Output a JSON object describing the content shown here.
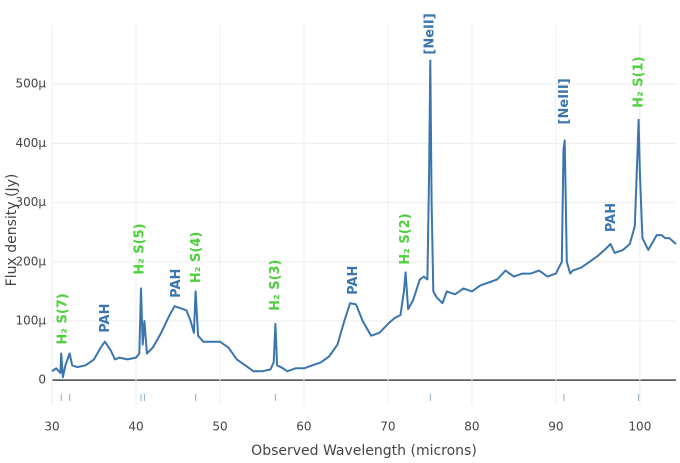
{
  "chart_data": {
    "type": "line",
    "x_label": "Observed Wavelength (microns)",
    "y_label": "Flux density (Jy)",
    "color": "#3a75b0",
    "grid": true,
    "xlim": [
      30,
      104.3
    ],
    "xticks": [
      30,
      40,
      50,
      60,
      70,
      80,
      90,
      100
    ],
    "ylim": [
      -4.2e-05,
      0.0006
    ],
    "yticks": [
      0,
      {
        "value": 0.0001,
        "label": "100μ"
      },
      {
        "value": 0.0002,
        "label": "200μ"
      },
      {
        "value": 0.0003,
        "label": "300μ"
      },
      {
        "value": 0.0004,
        "label": "400μ"
      },
      {
        "value": 0.0005,
        "label": "500μ"
      }
    ],
    "x": [
      30,
      30.5,
      31,
      31.1,
      31.3,
      31.6,
      32.1,
      32.4,
      33,
      34,
      35,
      35.8,
      36.3,
      37,
      37.5,
      38,
      39,
      40,
      40.4,
      40.6,
      40.8,
      41,
      41.3,
      42,
      43,
      44,
      44.6,
      45.2,
      46,
      46.5,
      46.9,
      47.1,
      47.4,
      48,
      49,
      50,
      51,
      52,
      53,
      54,
      55,
      56,
      56.4,
      56.6,
      56.8,
      57.5,
      58,
      59,
      60,
      61,
      62,
      63,
      64,
      64.8,
      65.5,
      66.2,
      67,
      68,
      69,
      70,
      70.8,
      71.5,
      71.9,
      72.1,
      72.4,
      73,
      73.8,
      74.3,
      74.7,
      74.9,
      75.05,
      75.2,
      75.4,
      75.8,
      76.5,
      77,
      78,
      79,
      80,
      81,
      82,
      83,
      84,
      85,
      86,
      87,
      88,
      89,
      90,
      90.7,
      90.9,
      91.05,
      91.3,
      91.7,
      92,
      93,
      94,
      95,
      95.8,
      96.5,
      97,
      98,
      98.8,
      99.4,
      99.7,
      99.85,
      100,
      100.3,
      101,
      102,
      102.6,
      103,
      103.5,
      104.3
    ],
    "values": [
      1.5e-05,
      2e-05,
      1.2e-05,
      4.5e-05,
      5e-06,
      2.5e-05,
      4.5e-05,
      2.5e-05,
      2.2e-05,
      2.5e-05,
      3.5e-05,
      5.5e-05,
      6.5e-05,
      5e-05,
      3.5e-05,
      3.8e-05,
      3.5e-05,
      3.8e-05,
      4.5e-05,
      0.000155,
      6e-05,
      0.0001,
      4.5e-05,
      5.5e-05,
      8e-05,
      0.00011,
      0.000125,
      0.000122,
      0.000118,
      0.0001,
      8e-05,
      0.00015,
      7.5e-05,
      6.5e-05,
      6.5e-05,
      6.5e-05,
      5.5e-05,
      3.5e-05,
      2.5e-05,
      1.5e-05,
      1.5e-05,
      1.8e-05,
      3e-05,
      9.5e-05,
      2.5e-05,
      2e-05,
      1.5e-05,
      2e-05,
      2e-05,
      2.5e-05,
      3e-05,
      4e-05,
      6e-05,
      0.0001,
      0.00013,
      0.000128,
      0.0001,
      7.5e-05,
      8e-05,
      9.5e-05,
      0.000105,
      0.00011,
      0.00015,
      0.000182,
      0.00012,
      0.000135,
      0.00017,
      0.000175,
      0.00017,
      0.00035,
      0.00054,
      0.0003,
      0.00015,
      0.00014,
      0.00013,
      0.00015,
      0.000145,
      0.000155,
      0.00015,
      0.00016,
      0.000165,
      0.00017,
      0.000185,
      0.000175,
      0.00018,
      0.00018,
      0.000185,
      0.000175,
      0.00018,
      0.0002,
      0.00039,
      0.000405,
      0.0002,
      0.00018,
      0.000185,
      0.00019,
      0.0002,
      0.00021,
      0.00022,
      0.00023,
      0.000215,
      0.00022,
      0.00023,
      0.00026,
      0.00038,
      0.00044,
      0.00035,
      0.00024,
      0.00022,
      0.000245,
      0.000245,
      0.00024,
      0.00024,
      0.00023
    ],
    "line_positions": [
      31.1,
      32.1,
      40.6,
      41,
      47.1,
      56.6,
      75.05,
      90.95,
      99.85
    ],
    "annotations": [
      {
        "text": "H₂ S(7)",
        "x": 31.3,
        "y": 6e-05,
        "color": "#4cd03c"
      },
      {
        "text": "PAH",
        "x": 36.4,
        "y": 8e-05,
        "color": "#3a75b0"
      },
      {
        "text": "H₂ S(5)",
        "x": 40.5,
        "y": 0.000178,
        "color": "#4cd03c"
      },
      {
        "text": "PAH",
        "x": 44.8,
        "y": 0.000139,
        "color": "#3a75b0"
      },
      {
        "text": "H₂ S(4)",
        "x": 47.2,
        "y": 0.000164,
        "color": "#4cd03c"
      },
      {
        "text": "H₂ S(3)",
        "x": 56.6,
        "y": 0.000117,
        "color": "#4cd03c"
      },
      {
        "text": "PAH",
        "x": 65.9,
        "y": 0.000144,
        "color": "#3a75b0"
      },
      {
        "text": "H₂ S(2)",
        "x": 72.1,
        "y": 0.000195,
        "color": "#4cd03c"
      },
      {
        "text": "[NeII]",
        "x": 75,
        "y": 0.00055,
        "color": "#3a75b0"
      },
      {
        "text": "[NeIII]",
        "x": 91,
        "y": 0.000432,
        "color": "#3a75b0"
      },
      {
        "text": "PAH",
        "x": 96.6,
        "y": 0.00025,
        "color": "#3a75b0"
      },
      {
        "text": "H₂ S(1)",
        "x": 99.9,
        "y": 0.00046,
        "color": "#4cd03c"
      }
    ]
  }
}
